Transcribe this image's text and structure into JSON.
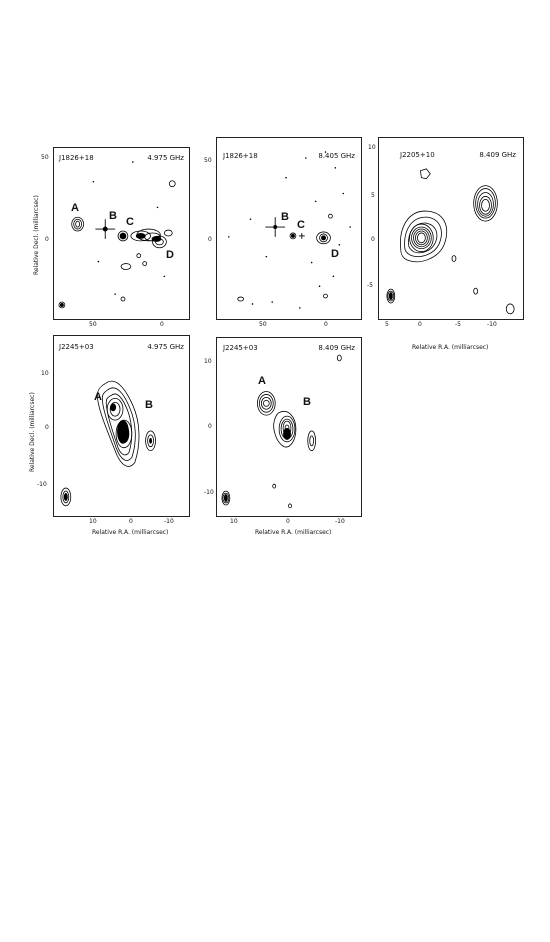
{
  "panels": {
    "p1": {
      "source": "J1826+18",
      "freq": "4.975 GHz",
      "xticks": [
        "50",
        "0"
      ],
      "yticks": [
        "50",
        "0"
      ],
      "components": [
        "A",
        "B",
        "C",
        "D"
      ]
    },
    "p2": {
      "source": "J1826+18",
      "freq": "8.405 GHz",
      "xticks": [
        "50",
        "0"
      ],
      "yticks": [
        "50",
        "0"
      ],
      "components": [
        "B",
        "C",
        "D"
      ]
    },
    "p3": {
      "source": "J2205+10",
      "freq": "8.409 GHz",
      "xticks": [
        "5",
        "0",
        "-5",
        "-10"
      ],
      "yticks": [
        "10",
        "5",
        "0",
        "-5"
      ]
    },
    "p4": {
      "source": "J2245+03",
      "freq": "4.975 GHz",
      "xticks": [
        "10",
        "0",
        "-10"
      ],
      "yticks": [
        "10",
        "0",
        "-10"
      ],
      "components": [
        "A",
        "B"
      ]
    },
    "p5": {
      "source": "J2245+03",
      "freq": "8.409 GHz",
      "xticks": [
        "10",
        "0",
        "-10"
      ],
      "yticks": [
        "10",
        "0",
        "-10"
      ],
      "components": [
        "A",
        "B"
      ]
    }
  },
  "axis_labels": {
    "ylabel_top": "Relative Decl. (milliarcsec)",
    "ylabel_bottom": "Relative Decl. (milliarcsec)",
    "xlabel_p3": "Relative R.A. (milliarcsec)",
    "xlabel_p4": "Relative R.A. (milliarcsec)",
    "xlabel_p5": "Relative R.A. (milliarcsec)"
  }
}
